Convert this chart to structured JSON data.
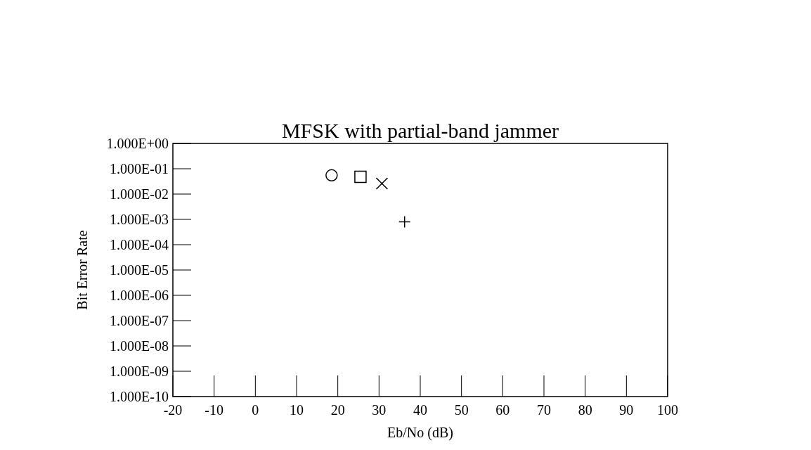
{
  "chart_data": {
    "type": "scatter",
    "title": "MFSK with partial-band jammer",
    "xlabel": "Eb/No (dB)",
    "ylabel": "Bit Error Rate",
    "log": "y",
    "xlim": [
      -20,
      100
    ],
    "xticks": [
      -20,
      -10,
      0,
      10,
      20,
      30,
      40,
      50,
      60,
      70,
      80,
      90,
      100
    ],
    "ylim": [
      1e-10,
      1
    ],
    "yticks": [
      {
        "value": 1,
        "label": "1.000E+00"
      },
      {
        "value": 0.1,
        "label": "1.000E-01"
      },
      {
        "value": 0.01,
        "label": "1.000E-02"
      },
      {
        "value": 0.001,
        "label": "1.000E-03"
      },
      {
        "value": 0.0001,
        "label": "1.000E-04"
      },
      {
        "value": 1e-05,
        "label": "1.000E-05"
      },
      {
        "value": 1e-06,
        "label": "1.000E-06"
      },
      {
        "value": 1e-07,
        "label": "1.000E-07"
      },
      {
        "value": 1e-08,
        "label": "1.000E-08"
      },
      {
        "value": 1e-09,
        "label": "1.000E-09"
      },
      {
        "value": 1e-10,
        "label": "1.000E-10"
      }
    ],
    "grid": false,
    "series": [
      {
        "color": "#000000",
        "marker": "circle",
        "x": [
          18.5
        ],
        "values": [
          0.055
        ]
      },
      {
        "color": "#000000",
        "marker": "square",
        "x": [
          25.5
        ],
        "values": [
          0.048
        ]
      },
      {
        "color": "#000000",
        "marker": "cross",
        "x": [
          30.7
        ],
        "values": [
          0.026
        ]
      },
      {
        "color": "#000000",
        "marker": "plus",
        "x": [
          36.2
        ],
        "values": [
          0.0008
        ]
      }
    ]
  }
}
